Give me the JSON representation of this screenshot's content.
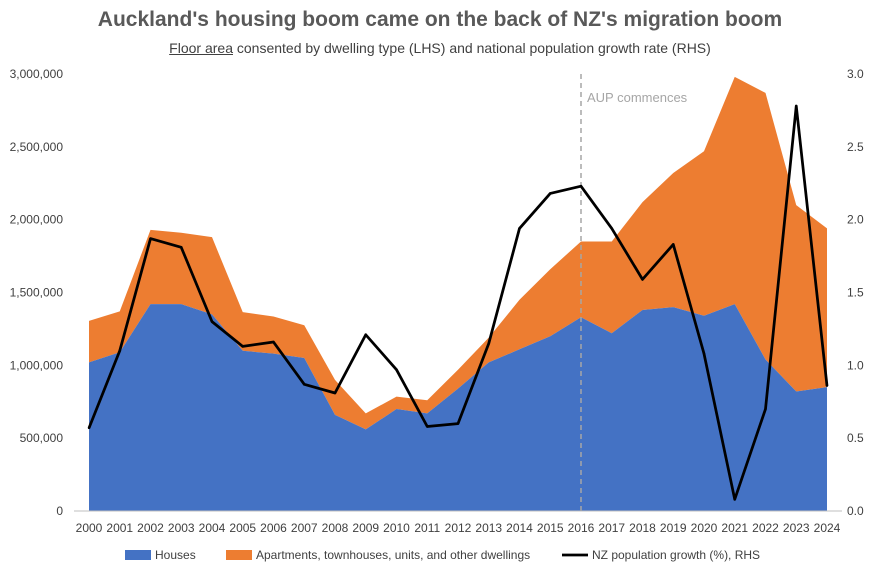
{
  "chart_data": {
    "type": "area",
    "title": "Auckland's housing boom came on the back of NZ's migration boom",
    "subtitle_underlined": "Floor area",
    "subtitle_rest": " consented by dwelling type (LHS) and national population growth rate (RHS)",
    "categories": [
      "2000",
      "2001",
      "2002",
      "2003",
      "2004",
      "2005",
      "2006",
      "2007",
      "2008",
      "2009",
      "2010",
      "2011",
      "2012",
      "2013",
      "2014",
      "2015",
      "2016",
      "2017",
      "2018",
      "2019",
      "2020",
      "2021",
      "2022",
      "2023",
      "2024"
    ],
    "series": [
      {
        "name": "Houses",
        "type": "stacked-area",
        "axis": "left",
        "color": "#4472C4",
        "values": [
          1020000,
          1090000,
          1420000,
          1420000,
          1350000,
          1100000,
          1080000,
          1050000,
          660000,
          560000,
          700000,
          670000,
          840000,
          1020000,
          1110000,
          1200000,
          1330000,
          1220000,
          1380000,
          1400000,
          1340000,
          1420000,
          1040000,
          820000,
          850000
        ]
      },
      {
        "name": "Apartments, townhouses, units, and other dwellings",
        "type": "stacked-area",
        "axis": "left",
        "color": "#ED7D31",
        "values": [
          285000,
          280000,
          510000,
          490000,
          530000,
          265000,
          255000,
          225000,
          240000,
          110000,
          85000,
          90000,
          130000,
          170000,
          340000,
          460000,
          520000,
          630000,
          740000,
          920000,
          1130000,
          1560000,
          1830000,
          1280000,
          1090000
        ]
      },
      {
        "name": "NZ population growth (%), RHS",
        "type": "line",
        "axis": "right",
        "color": "#000000",
        "values": [
          0.57,
          1.1,
          1.87,
          1.81,
          1.3,
          1.13,
          1.16,
          0.87,
          0.81,
          1.21,
          0.97,
          0.58,
          0.6,
          1.15,
          1.94,
          2.18,
          2.23,
          1.94,
          1.59,
          1.83,
          1.08,
          0.08,
          0.7,
          2.78,
          0.86
        ]
      }
    ],
    "ylim_left": [
      0,
      3000000
    ],
    "yticks_left": [
      0,
      500000,
      1000000,
      1500000,
      2000000,
      2500000,
      3000000
    ],
    "ytick_labels_left": [
      "0",
      "500,000",
      "1,000,000",
      "1,500,000",
      "2,000,000",
      "2,500,000",
      "3,000,000"
    ],
    "ylim_right": [
      0,
      3.0
    ],
    "yticks_right": [
      0,
      0.5,
      1.0,
      1.5,
      2.0,
      2.5,
      3.0
    ],
    "ytick_labels_right": [
      "0.0",
      "0.5",
      "1.0",
      "1.5",
      "2.0",
      "2.5",
      "3.0"
    ],
    "annotation": {
      "text": "AUP commences",
      "x": "2016"
    },
    "grid": false,
    "legend_position": "bottom"
  }
}
